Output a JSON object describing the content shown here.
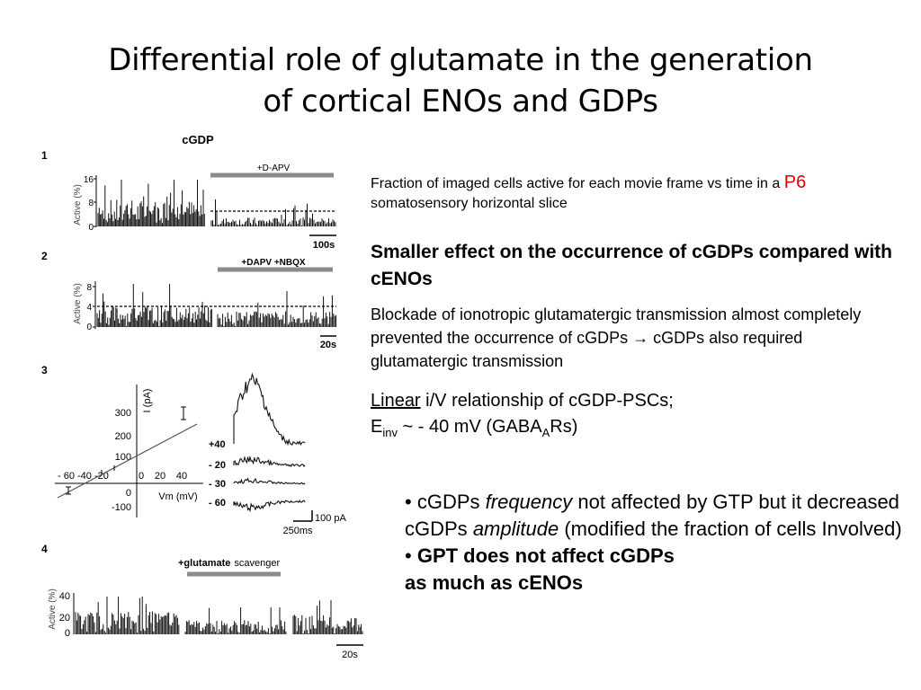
{
  "slide": {
    "title_line1": "Differential role of glutamate in the generation",
    "title_line2": "of cortical ENOs and GDPs"
  },
  "figure": {
    "panel_title": "cGDP",
    "panel1": {
      "number": "1",
      "treatment": "+D-APV",
      "ylabel": "Active (%)",
      "yticks": [
        "16",
        "8",
        "0"
      ],
      "scale": "100s"
    },
    "panel2": {
      "number": "2",
      "treatment": "+DAPV +NBQX",
      "ylabel": "Active (%)",
      "yticks": [
        "8",
        "4",
        "0"
      ],
      "scale": "20s"
    },
    "panel3": {
      "number": "3",
      "y_axis_label": "I (pA)",
      "x_axis_label": "Vm (mV)",
      "yticks": [
        "300",
        "200",
        "100",
        "0",
        "-100"
      ],
      "xticks_left": "- 60  -40 -20",
      "xticks_right": [
        "0",
        "20",
        "40"
      ],
      "trace_labels": [
        "+40",
        "- 20",
        "- 30",
        "- 60"
      ],
      "scale_current": "100 pA",
      "scale_time": "250ms"
    },
    "panel4": {
      "number": "4",
      "treatment_bold": "+glutamate",
      "treatment_rest": "scavenger",
      "ylabel": "Active (%)",
      "yticks": [
        "40",
        "20",
        "0"
      ],
      "scale": "20s"
    }
  },
  "text": {
    "caption_a": "Fraction of imaged cells active for each movie frame vs time in a",
    "caption_red": "P6",
    "caption_b": "somatosensory horizontal slice",
    "subhead": "Smaller effect on the occurrence of cGDPs compared with cENOs",
    "body1": "Blockade of ionotropic glutamatergic transmission almost completely prevented the occurrence of cGDPs → cGDPs also required glutamatergic transmission",
    "linear": "Linear",
    "linear_rest": "i/V relationship of cGDP-PSCs;",
    "e_main": "E",
    "e_sub": "inv",
    "e_rest": "~ - 40 mV (GABA",
    "a_sub": "A",
    "rs": "Rs)"
  },
  "bullets": {
    "b1_a": "cGDPs",
    "b1_freq": "frequency",
    "b1_b": "not affected by GTP but it decreased cGDPs",
    "b1_amp": "amplitude",
    "b1_c": "(modified the fraction of cells Involved)",
    "b2_line1": "GPT does not affect cGDPs",
    "b2_line2": "as much as cENOs"
  }
}
